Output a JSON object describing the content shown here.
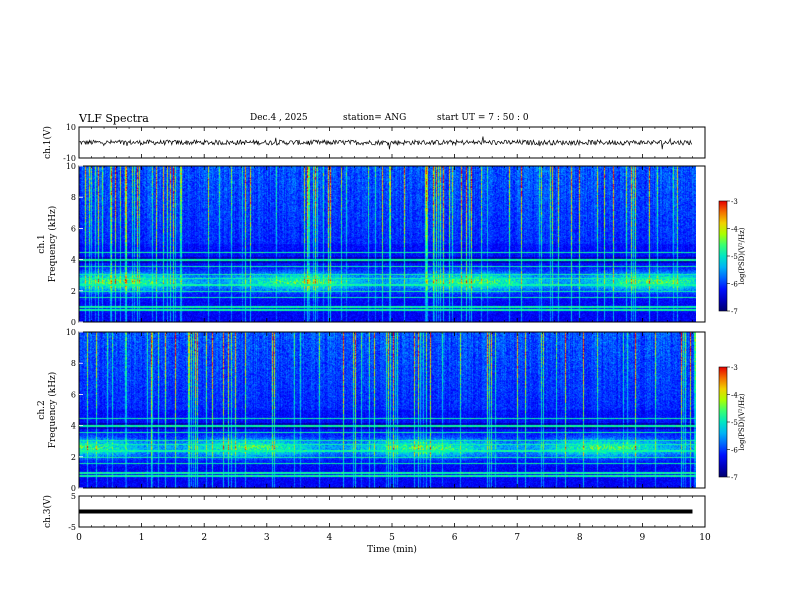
{
  "header": {
    "title": "VLF Spectra",
    "date": "Dec.4 , 2025",
    "station": "station= ANG",
    "start": "start UT = 7 : 50 : 0"
  },
  "chart_data": [
    {
      "type": "line",
      "id": "ch1-waveform",
      "ylabel": "ch.1(V)",
      "ylim": [
        -10,
        10
      ],
      "yticks": [
        "10",
        "-10"
      ],
      "xlim": [
        0,
        10
      ],
      "baseline": 0
    },
    {
      "type": "heatmap",
      "id": "ch1-spectrogram",
      "ylabel": "ch.1 Frequency (kHz)",
      "ylim": [
        0,
        10
      ],
      "yticks": [
        "0",
        "2",
        "4",
        "6",
        "8",
        "10"
      ],
      "xlim": [
        0,
        10
      ],
      "colorbar": {
        "label": "log(PSD)(V²/Hz)",
        "range": [
          -7,
          -3
        ],
        "ticks": [
          "-3",
          "-4",
          "-5",
          "-6",
          "-7"
        ]
      }
    },
    {
      "type": "heatmap",
      "id": "ch2-spectrogram",
      "ylabel": "ch.2 Frequency (kHz)",
      "ylim": [
        0,
        10
      ],
      "yticks": [
        "0",
        "2",
        "4",
        "6",
        "8",
        "10"
      ],
      "xlim": [
        0,
        10
      ],
      "colorbar": {
        "label": "log(PSD)(V²/Hz)",
        "range": [
          -7,
          -3
        ],
        "ticks": [
          "-3",
          "-4",
          "-5",
          "-6",
          "-7"
        ]
      }
    },
    {
      "type": "line",
      "id": "ch3-trace",
      "ylabel": "ch.3(V)",
      "ylim": [
        -5,
        5
      ],
      "yticks": [
        "5",
        "-5"
      ],
      "xlim": [
        0,
        10
      ],
      "baseline": 0
    }
  ],
  "xaxis": {
    "label": "Time (min)",
    "ticks": [
      "0",
      "1",
      "2",
      "3",
      "4",
      "5",
      "6",
      "7",
      "8",
      "9",
      "10"
    ]
  }
}
